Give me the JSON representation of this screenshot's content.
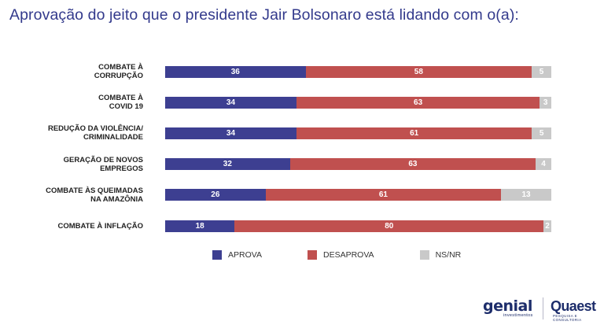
{
  "title": "Aprovação do jeito que o presidente Jair Bolsonaro está lidando com o(a):",
  "colors": {
    "aprova": "#3d3f91",
    "desaprova": "#c0504f",
    "nsnr": "#c9c9c9"
  },
  "chart_data": {
    "type": "bar",
    "orientation": "horizontal-stacked",
    "categories": [
      "COMBATE À CORRUPÇÃO",
      "COMBATE À COVID 19",
      "REDUÇÃO DA VIOLÊNCIA/ CRIMINALIDADE",
      "GERAÇÃO DE NOVOS EMPREGOS",
      "COMBATE ÀS QUEIMADAS NA AMAZÔNIA",
      "COMBATE À INFLAÇÃO"
    ],
    "category_lines": [
      [
        "COMBATE À",
        "CORRUPÇÃO"
      ],
      [
        "COMBATE À",
        "COVID 19"
      ],
      [
        "REDUÇÃO DA VIOLÊNCIA/",
        "CRIMINALIDADE"
      ],
      [
        "GERAÇÃO DE NOVOS",
        "EMPREGOS"
      ],
      [
        "COMBATE ÀS QUEIMADAS",
        "NA AMAZÔNIA"
      ],
      [
        "COMBATE À INFLAÇÃO"
      ]
    ],
    "series": [
      {
        "name": "APROVA",
        "values": [
          36,
          34,
          34,
          32,
          26,
          18
        ]
      },
      {
        "name": "DESAPROVA",
        "values": [
          58,
          63,
          61,
          63,
          61,
          80
        ]
      },
      {
        "name": "NS/NR",
        "values": [
          5,
          3,
          5,
          4,
          13,
          2
        ]
      }
    ],
    "legend_position": "bottom"
  },
  "logos": {
    "genial": "genial",
    "genial_sub": "investimentos",
    "quaest": "Quaest",
    "quaest_sub": "PESQUISA E CONSULTORIA"
  }
}
